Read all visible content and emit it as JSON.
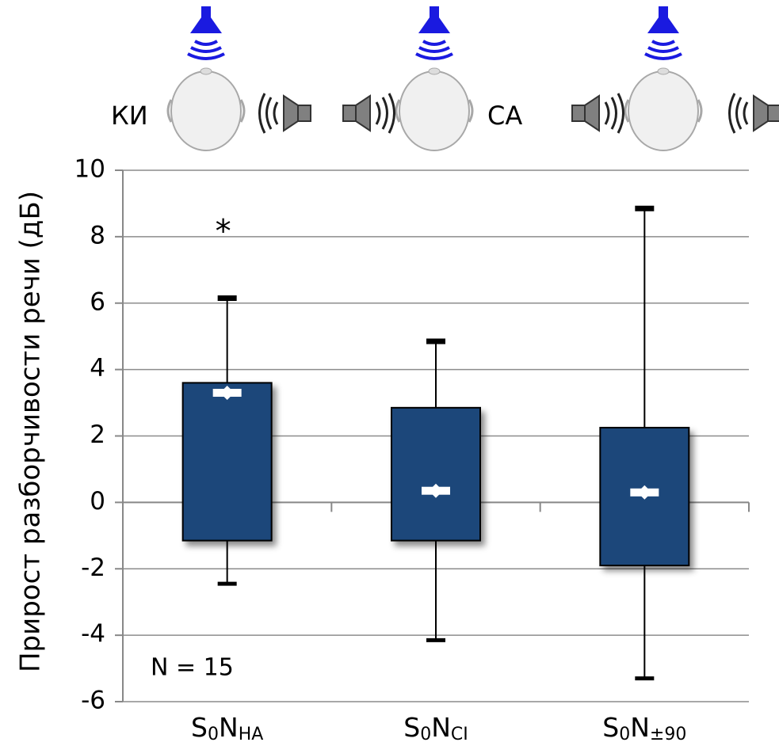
{
  "chart_data": {
    "type": "box",
    "ylabel": "Прирост разборчивости речи (дБ)",
    "icon_labels": [
      "КИ",
      "СА"
    ],
    "categories": [
      [
        "S",
        "0",
        "N",
        "HA"
      ],
      [
        "S",
        "0",
        "N",
        "CI"
      ],
      [
        "S",
        "0",
        "N",
        "±90"
      ]
    ],
    "boxes": [
      {
        "low": -2.45,
        "q1": -1.15,
        "median": 3.3,
        "q3": 3.6,
        "high": 6.15
      },
      {
        "low": -4.15,
        "q1": -1.15,
        "median": 0.35,
        "q3": 2.85,
        "high": 4.85
      },
      {
        "low": -5.3,
        "q1": -1.9,
        "median": 0.3,
        "q3": 2.25,
        "high": 8.85
      }
    ],
    "color": "#1f477a",
    "ylim": [
      -6,
      10
    ],
    "yticks": [
      -6,
      -4,
      -2,
      0,
      2,
      4,
      6,
      8,
      10
    ],
    "grid": true,
    "annotations": [
      "*",
      "N = 15"
    ]
  }
}
